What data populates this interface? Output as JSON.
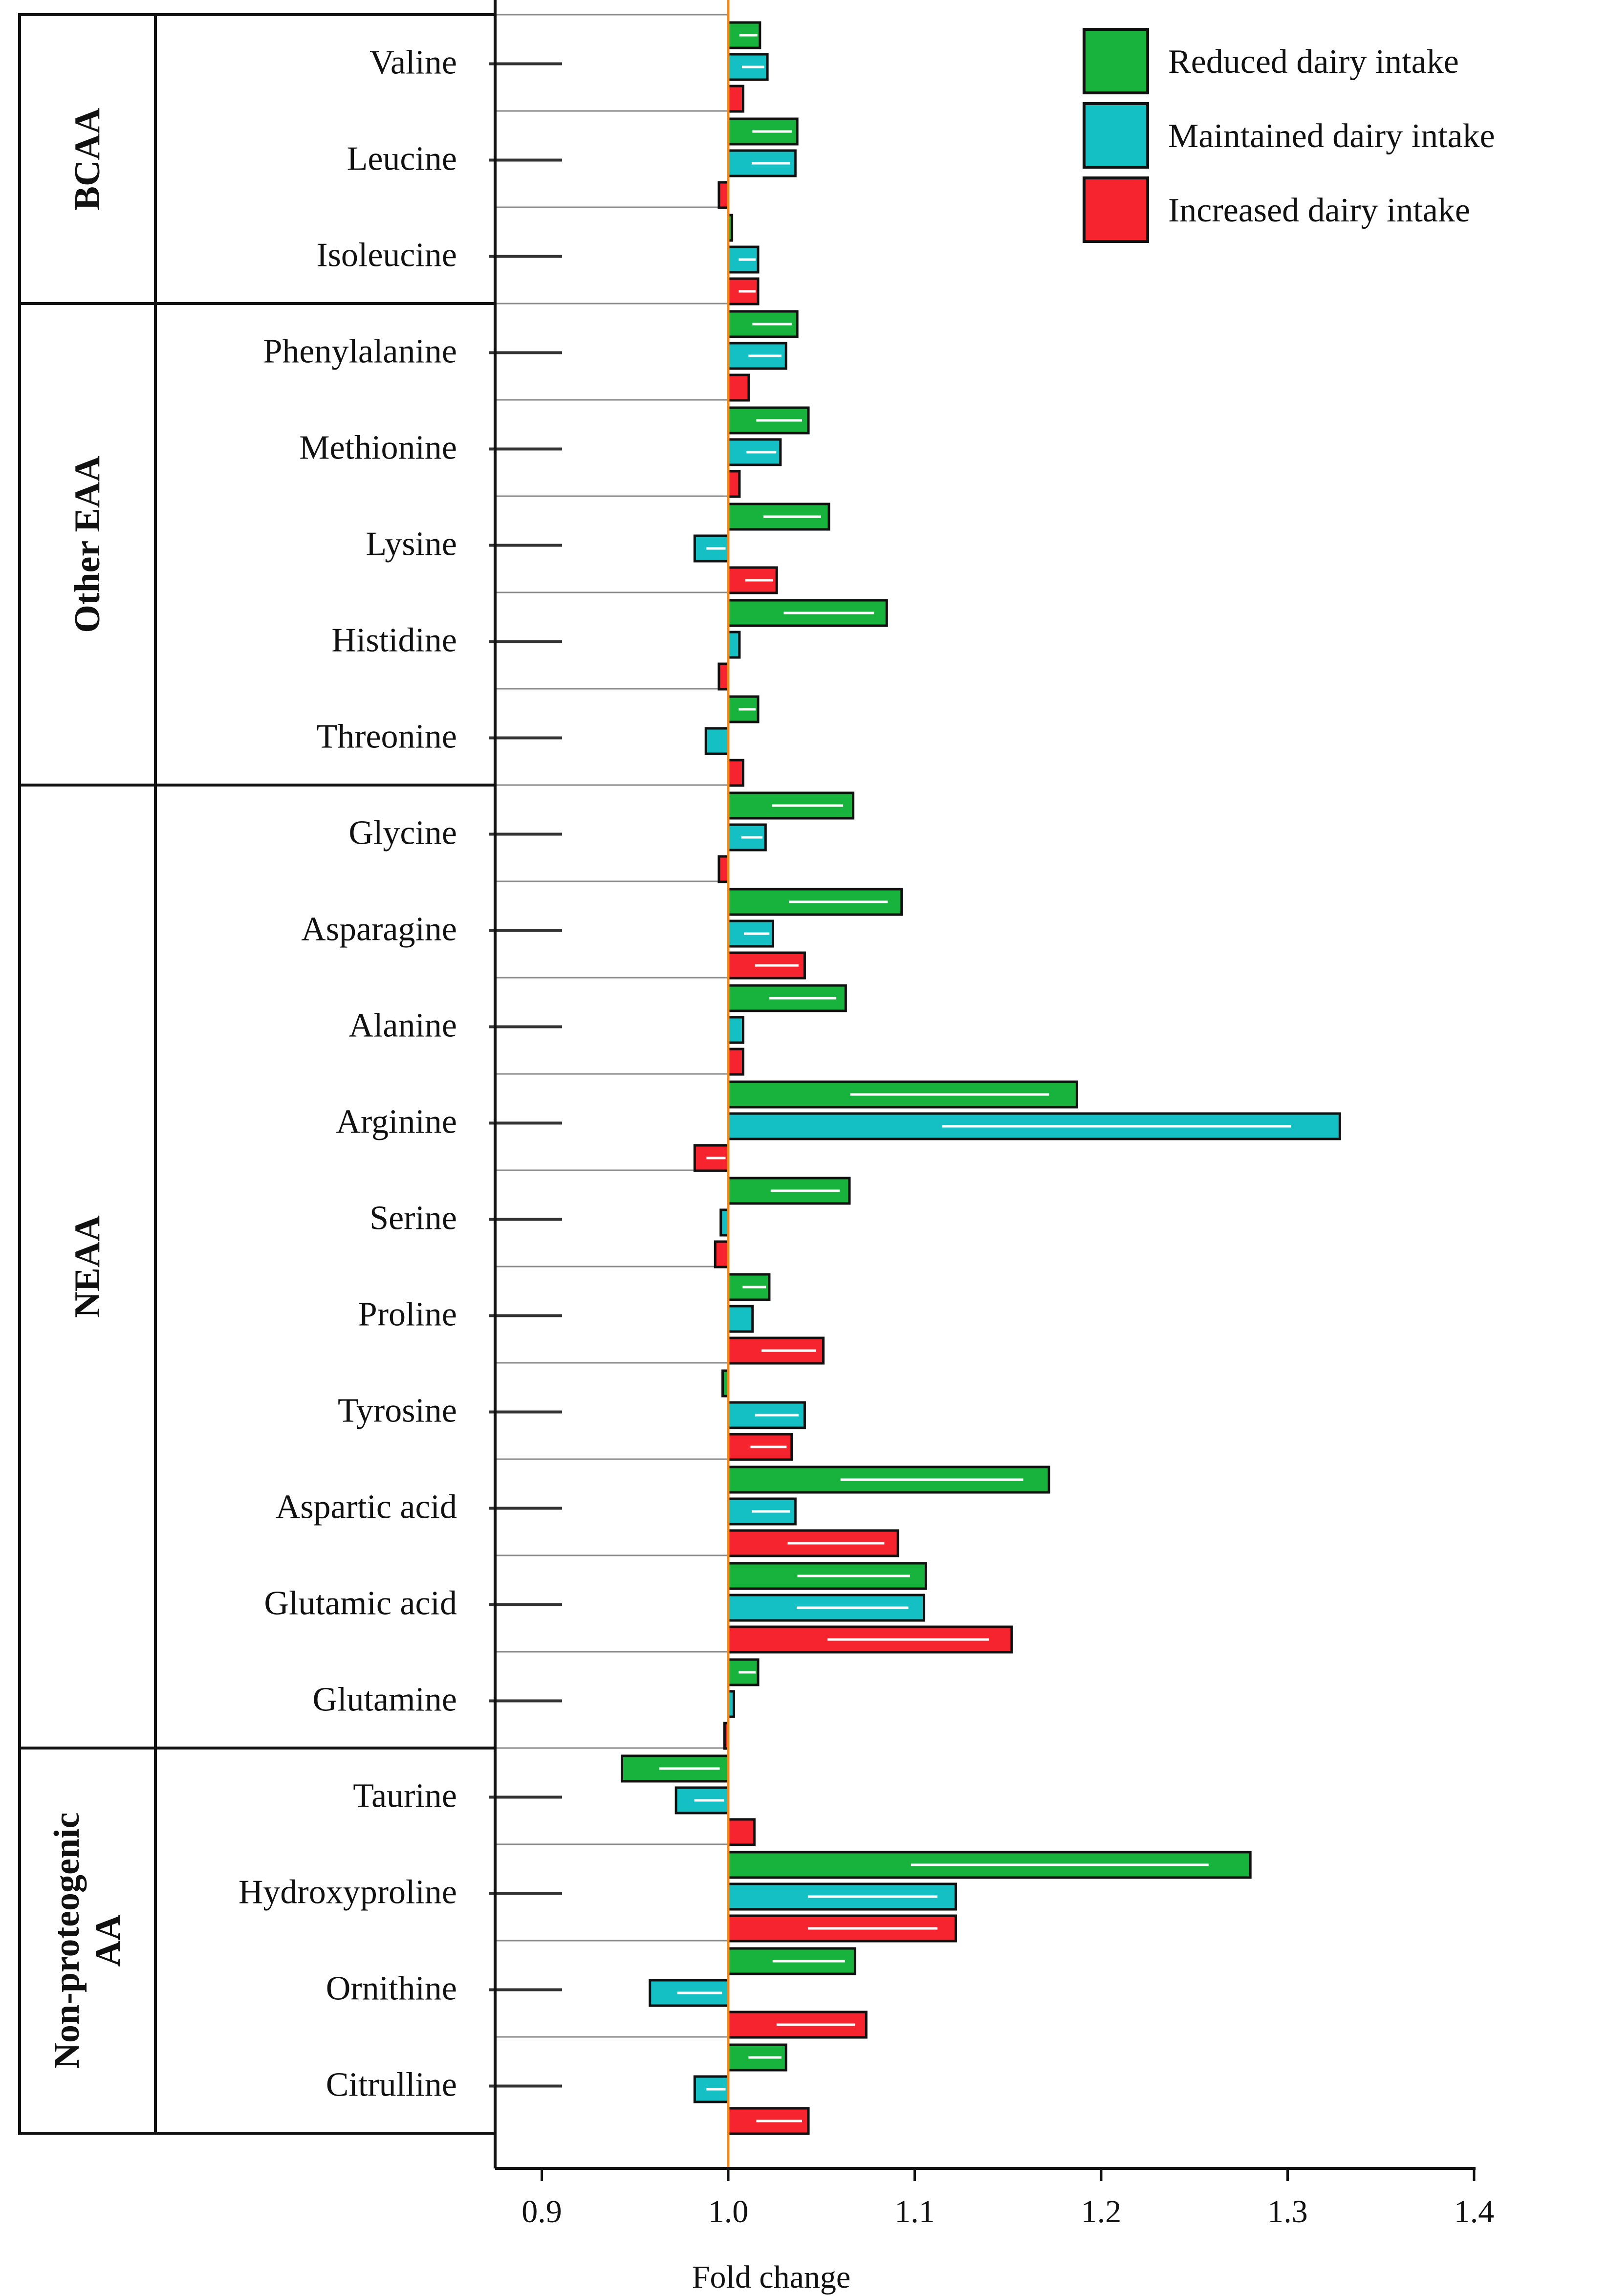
{
  "chart_data": {
    "type": "bar",
    "orientation": "horizontal",
    "xlabel": "Fold change",
    "xlim": [
      0.875,
      1.4
    ],
    "xticks": [
      0.9,
      1.0,
      1.1,
      1.2,
      1.3,
      1.4
    ],
    "xtick_labels": [
      "0.9",
      "1.0",
      "1.1",
      "1.2",
      "1.3",
      "1.4"
    ],
    "reference_value": 1.0,
    "series": [
      {
        "name": "Reduced dairy intake",
        "color": "#17b33c"
      },
      {
        "name": "Maintained dairy intake",
        "color": "#14c0c4"
      },
      {
        "name": "Increased dairy intake",
        "color": "#f5242e"
      }
    ],
    "groups": [
      {
        "label": "BCAA",
        "rows": [
          {
            "name": "Valine",
            "values": [
              1.017,
              1.021,
              1.008
            ]
          },
          {
            "name": "Leucine",
            "values": [
              1.037,
              1.036,
              0.995
            ]
          },
          {
            "name": "Isoleucine",
            "values": [
              1.002,
              1.016,
              1.016
            ]
          }
        ]
      },
      {
        "label": "Other EAA",
        "rows": [
          {
            "name": "Phenylalanine",
            "values": [
              1.037,
              1.031,
              1.011
            ]
          },
          {
            "name": "Methionine",
            "values": [
              1.043,
              1.028,
              1.006
            ]
          },
          {
            "name": "Lysine",
            "values": [
              1.054,
              0.982,
              1.026
            ]
          },
          {
            "name": "Histidine",
            "values": [
              1.085,
              1.006,
              0.995
            ]
          },
          {
            "name": "Threonine",
            "values": [
              1.016,
              0.988,
              1.008
            ]
          }
        ]
      },
      {
        "label": "NEAA",
        "rows": [
          {
            "name": "Glycine",
            "values": [
              1.067,
              1.02,
              0.995
            ]
          },
          {
            "name": "Asparagine",
            "values": [
              1.093,
              1.024,
              1.041
            ]
          },
          {
            "name": "Alanine",
            "values": [
              1.063,
              1.008,
              1.008
            ]
          },
          {
            "name": "Arginine",
            "values": [
              1.187,
              1.328,
              0.982
            ]
          },
          {
            "name": "Serine",
            "values": [
              1.065,
              0.996,
              0.993
            ]
          },
          {
            "name": "Proline",
            "values": [
              1.022,
              1.013,
              1.051
            ]
          },
          {
            "name": "Tyrosine",
            "values": [
              0.997,
              1.041,
              1.034
            ]
          },
          {
            "name": "Aspartic acid",
            "values": [
              1.172,
              1.036,
              1.091
            ]
          },
          {
            "name": "Glutamic acid",
            "values": [
              1.106,
              1.105,
              1.152
            ]
          },
          {
            "name": "Glutamine",
            "values": [
              1.016,
              1.003,
              0.998
            ]
          }
        ]
      },
      {
        "label": "Non-proteogenic AA",
        "label_lines": [
          "Non-proteogenic",
          "AA"
        ],
        "rows": [
          {
            "name": "Taurine",
            "values": [
              0.943,
              0.972,
              1.014
            ]
          },
          {
            "name": "Hydroxyproline",
            "values": [
              1.28,
              1.122,
              1.122
            ]
          },
          {
            "name": "Ornithine",
            "values": [
              1.068,
              0.958,
              1.074
            ]
          },
          {
            "name": "Citrulline",
            "values": [
              1.031,
              0.982,
              1.043
            ]
          }
        ]
      }
    ]
  }
}
